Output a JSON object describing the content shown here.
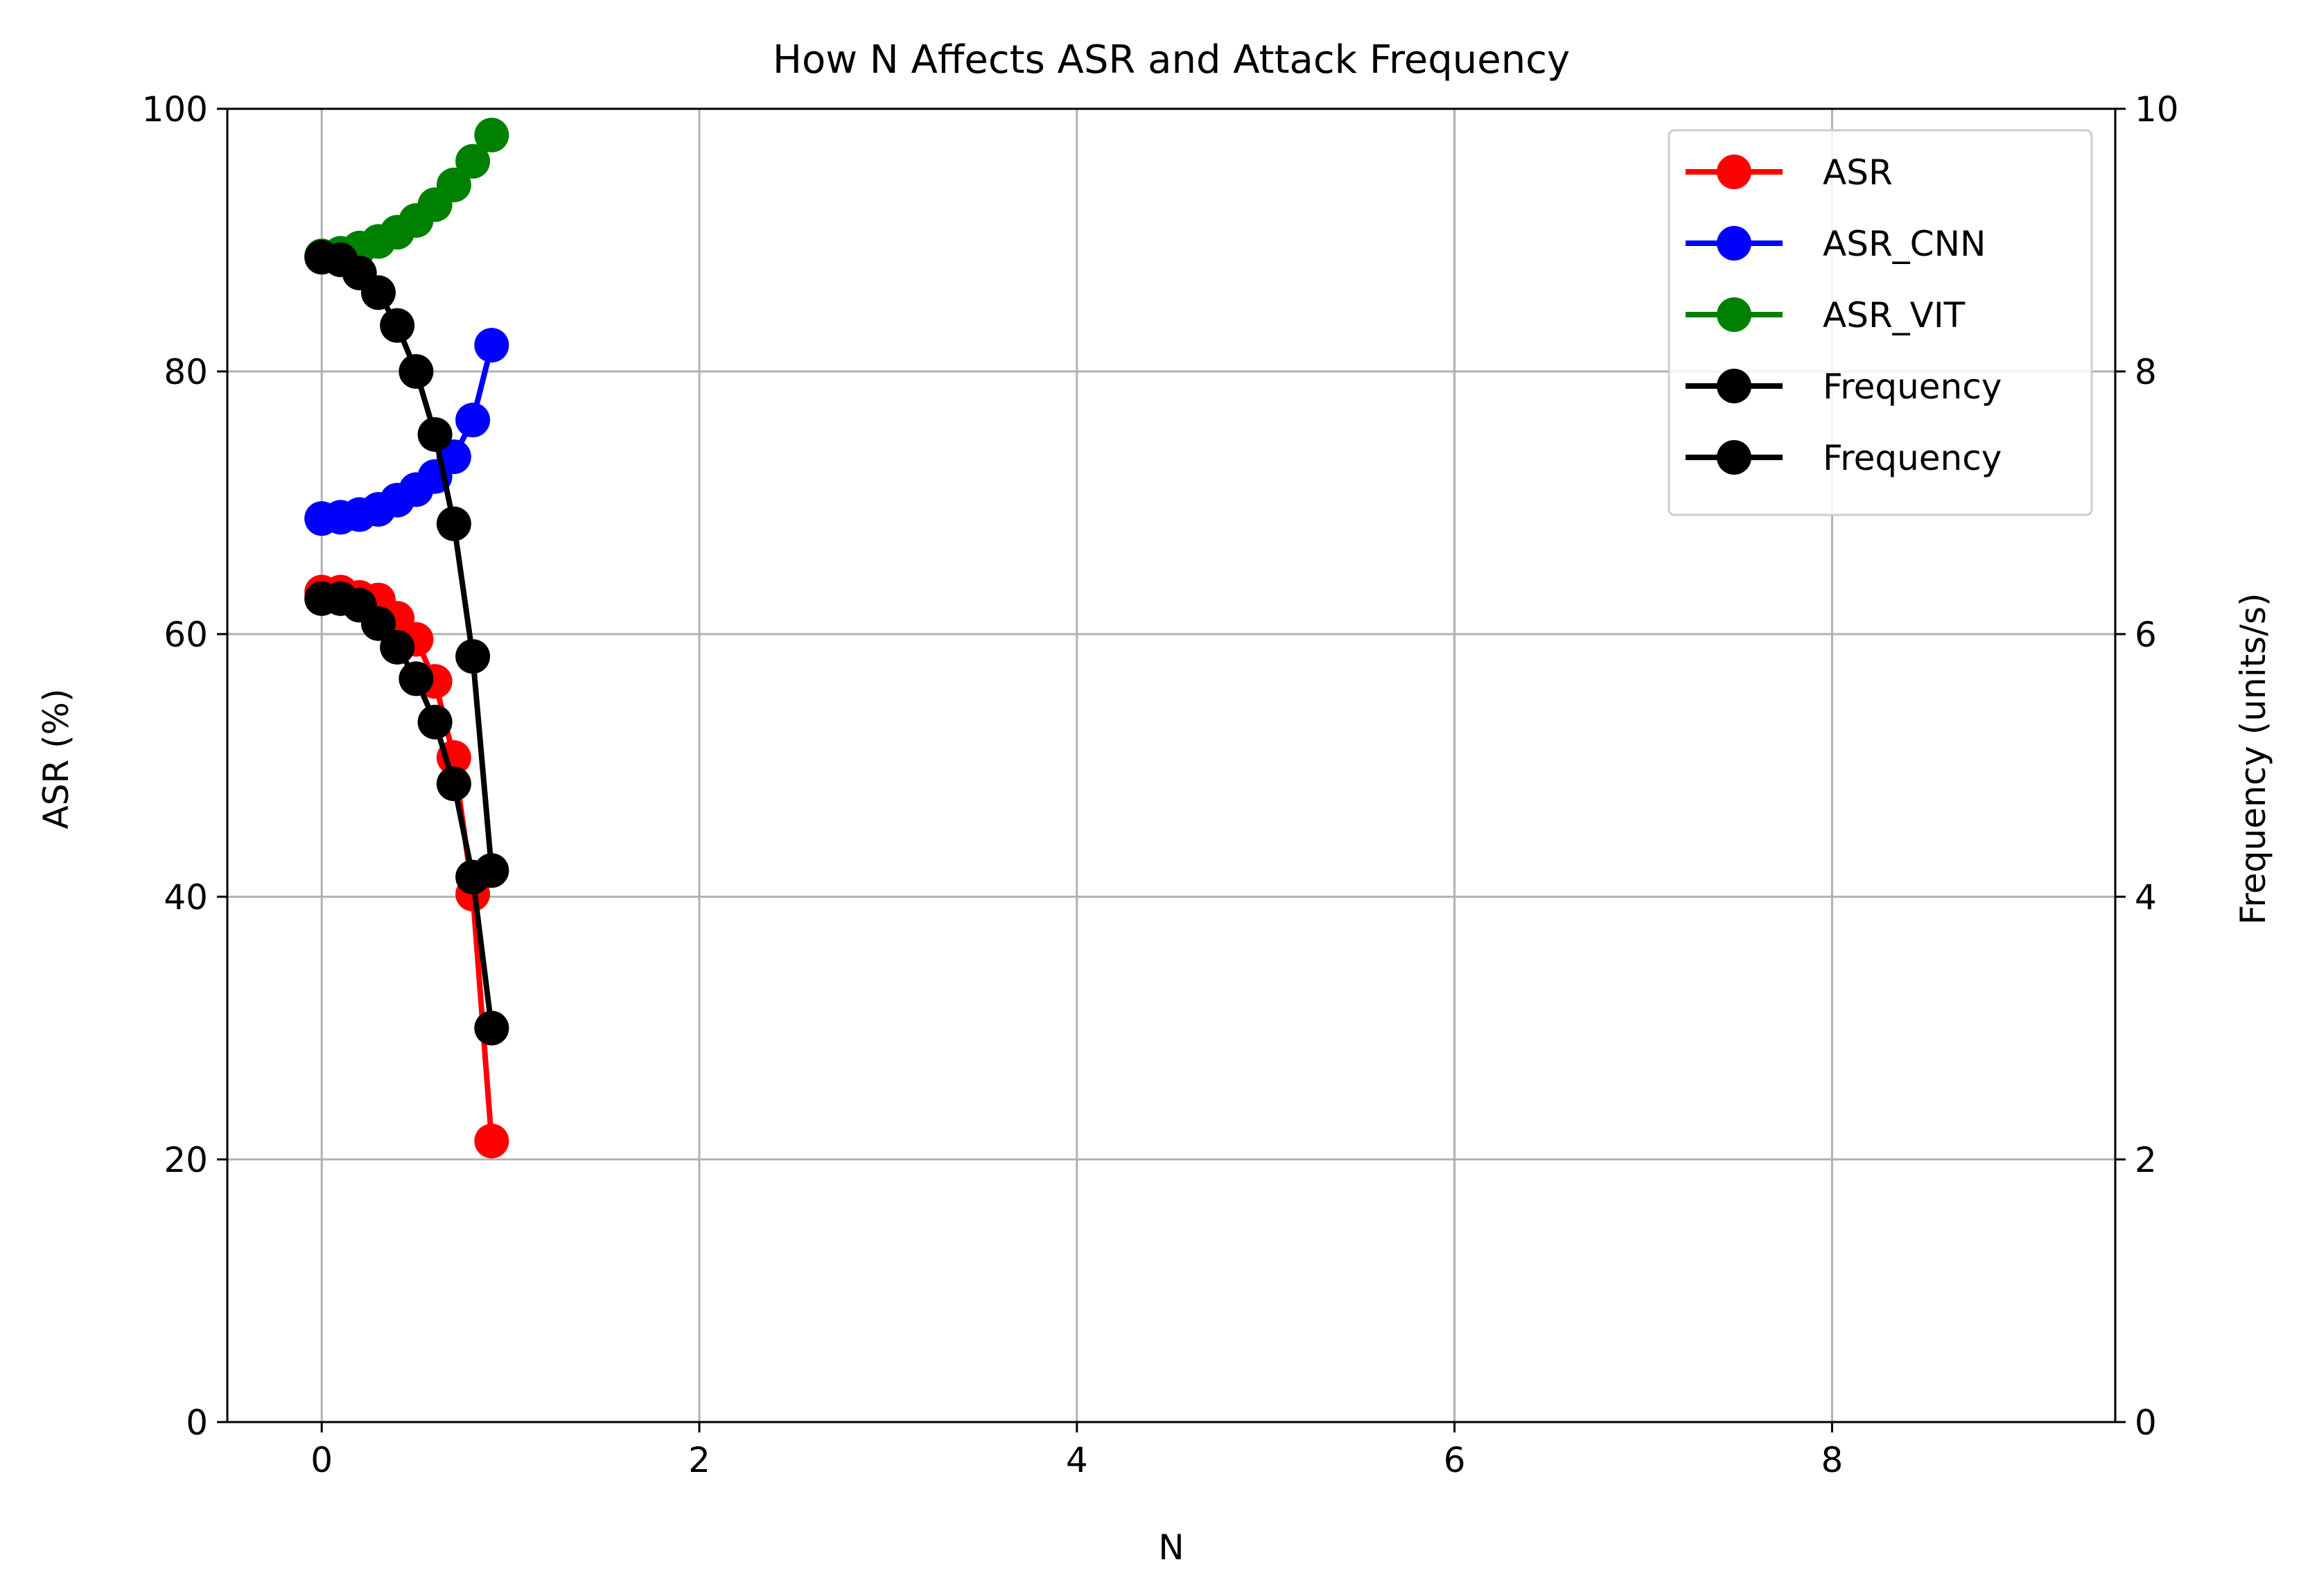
{
  "chart_data": {
    "type": "line",
    "title": "How N Affects ASR and Attack Frequency",
    "xlabel": "N",
    "ylabel": "ASR (%)",
    "y2label": "Frequency (units/s)",
    "xlim": [
      -0.5,
      9.5
    ],
    "ylim": [
      0,
      100
    ],
    "y2lim": [
      0,
      10
    ],
    "xticks": [
      0,
      2,
      4,
      6,
      8
    ],
    "yticks": [
      0,
      20,
      40,
      60,
      80,
      100
    ],
    "y2ticks": [
      0,
      2,
      4,
      6,
      8,
      10
    ],
    "grid": true,
    "legend_position": "upper right",
    "x": [
      0,
      0.1,
      0.2,
      0.3,
      0.4,
      0.5,
      0.6,
      0.7,
      0.8,
      0.9
    ],
    "series": [
      {
        "name": "ASR",
        "axis": "left",
        "color": "#ff0000",
        "values": [
          63.2,
          63.2,
          62.8,
          62.6,
          61.2,
          59.6,
          56.4,
          50.6,
          40.2,
          21.4
        ]
      },
      {
        "name": "ASR_CNN",
        "axis": "left",
        "color": "#0000ff",
        "values": [
          68.8,
          68.9,
          69.1,
          69.5,
          70.2,
          71.0,
          72.0,
          73.5,
          76.3,
          82.0
        ]
      },
      {
        "name": "ASR_VIT",
        "axis": "left",
        "color": "#008000",
        "values": [
          88.8,
          89.0,
          89.4,
          89.9,
          90.6,
          91.5,
          92.7,
          94.2,
          96.0,
          98.0
        ]
      },
      {
        "name": "Frequency",
        "axis": "right",
        "color": "#000000",
        "values": [
          8.87,
          8.85,
          8.75,
          8.6,
          8.35,
          8.0,
          7.52,
          6.84,
          5.83,
          4.2
        ]
      },
      {
        "name": "Frequency",
        "axis": "right",
        "color": "#000000",
        "values": [
          6.27,
          6.27,
          6.22,
          6.08,
          5.9,
          5.66,
          5.33,
          4.86,
          4.15,
          3.0
        ]
      }
    ]
  }
}
